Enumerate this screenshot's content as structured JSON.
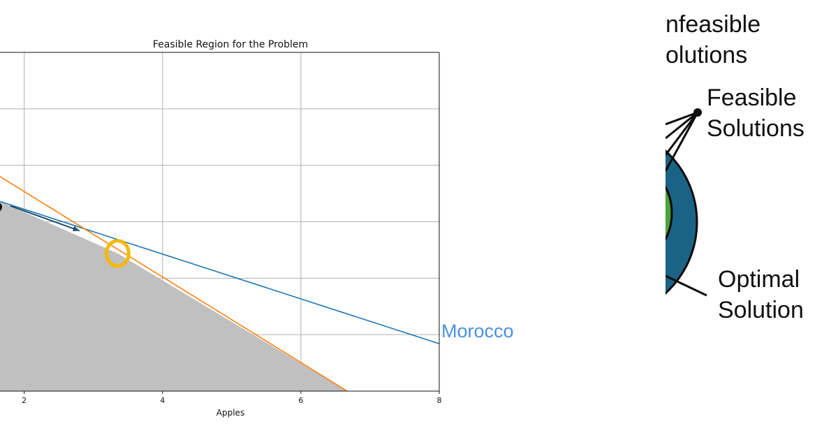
{
  "chart_data": {
    "type": "line",
    "title": "Feasible Region for the Problem",
    "xlabel": "Apples",
    "ylabel": "",
    "xlim": [
      1.65,
      8.0
    ],
    "ylim": [
      0.0,
      3.0
    ],
    "xticks": [
      2,
      4,
      6,
      8
    ],
    "grid": true,
    "series": [
      {
        "x": [
          1.65,
          8.0
        ],
        "y": [
          1.68,
          0.42
        ],
        "color": "#1f77b4"
      },
      {
        "x": [
          1.65,
          6.67
        ],
        "y": [
          1.9,
          0.0
        ],
        "color": "#ff7f0e"
      }
    ],
    "feasible_region": {
      "x": [
        1.65,
        3.35,
        6.67,
        1.65
      ],
      "y": [
        1.68,
        1.22,
        0.0,
        0.0
      ],
      "color": "#c0c0c0"
    },
    "highlighted_point": {
      "x": 3.35,
      "y": 1.22,
      "color": "#f5b800"
    },
    "start_point": {
      "x": 1.65,
      "y": 1.63
    },
    "direction_arrow": {
      "from": [
        1.8,
        1.64
      ],
      "to": [
        2.8,
        1.42
      ],
      "color": "#1f4e6b"
    }
  },
  "overlay": {
    "country": "Morocco",
    "country_color": "#4a90e2"
  },
  "diagram": {
    "infeasible_line1": "nfeasible",
    "infeasible_line2": "olutions",
    "feasible_line1": "Feasible",
    "feasible_line2": "Solutions",
    "optimal_line1": "Optimal",
    "optimal_line2": "Solution",
    "outer_color": "#1b6386",
    "inner_color": "#4ca33b"
  }
}
